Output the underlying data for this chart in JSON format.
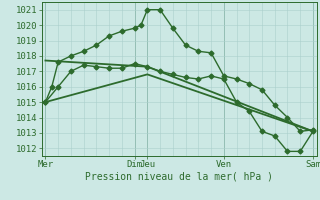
{
  "bg_color": "#cce8e4",
  "grid_color": "#aacfcc",
  "line_color": "#2d6b2d",
  "title": "Pression niveau de la mer( hPa )",
  "ylim": [
    1011.5,
    1021.5
  ],
  "yticks": [
    1012,
    1013,
    1014,
    1015,
    1016,
    1017,
    1018,
    1019,
    1020,
    1021
  ],
  "xtick_major": [
    0,
    7,
    8,
    14,
    21
  ],
  "xtick_labels": [
    "Mer",
    "Dim",
    "Jeu",
    "Ven",
    "Sam"
  ],
  "xlim": [
    -0.3,
    21.3
  ],
  "series": [
    {
      "x": [
        0,
        0.5,
        1,
        2,
        3,
        4,
        5,
        6,
        7,
        7.5,
        8,
        9,
        10,
        11,
        12,
        13,
        14,
        15,
        16,
        17,
        18,
        19,
        20,
        21
      ],
      "y": [
        1015.0,
        1016.0,
        1017.6,
        1018.0,
        1018.3,
        1018.7,
        1019.3,
        1019.6,
        1019.8,
        1020.0,
        1021.0,
        1021.0,
        1019.8,
        1018.7,
        1018.3,
        1018.2,
        1016.7,
        1016.5,
        1016.2,
        1015.8,
        1014.8,
        1014.0,
        1013.1,
        1013.2
      ],
      "marker": true,
      "lw": 1.0
    },
    {
      "x": [
        0,
        1,
        2,
        3,
        4,
        5,
        6,
        7,
        8,
        9,
        10,
        11,
        12,
        13,
        14,
        15,
        16,
        17,
        18,
        19,
        20,
        21
      ],
      "y": [
        1015.0,
        1016.0,
        1017.0,
        1017.4,
        1017.3,
        1017.2,
        1017.2,
        1017.5,
        1017.3,
        1017.0,
        1016.8,
        1016.6,
        1016.5,
        1016.7,
        1016.5,
        1015.0,
        1014.4,
        1013.1,
        1012.8,
        1011.8,
        1011.8,
        1013.1
      ],
      "marker": true,
      "lw": 1.0
    },
    {
      "x": [
        0,
        8,
        21
      ],
      "y": [
        1017.7,
        1017.3,
        1013.1
      ],
      "marker": false,
      "lw": 1.3
    },
    {
      "x": [
        0,
        8,
        21
      ],
      "y": [
        1015.0,
        1016.8,
        1013.1
      ],
      "marker": false,
      "lw": 1.3
    }
  ]
}
